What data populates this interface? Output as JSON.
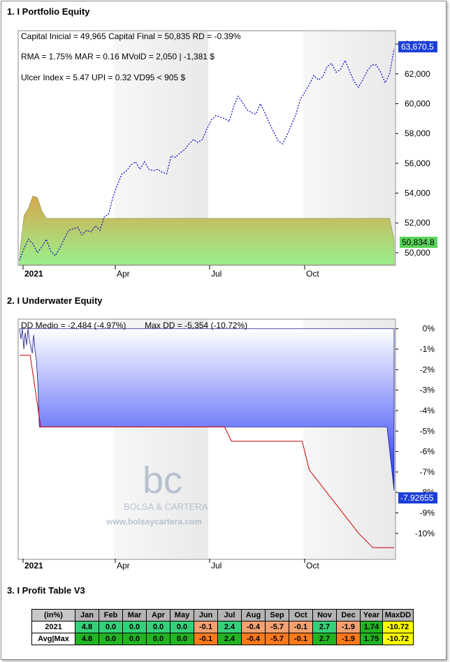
{
  "sections": {
    "equity_title": "1. I Portfolio Equity",
    "underwater_title": "2. I Underwater Equity",
    "table_title": "3. I Profit Table V3"
  },
  "colors": {
    "equity_dotted": "#0000cc",
    "area_top": "#d7a84d",
    "area_bottom": "#9af08c",
    "underwater_top": "#ffffff",
    "underwater_bottom": "#1a2ef5",
    "maxdd_line": "#cc0000",
    "badge_blue": "#1c3fd8",
    "badge_green": "#5ad45a",
    "cell_green": "#36d07a",
    "cell_orange": "#f4a070",
    "cell_dark_green": "#22b422",
    "cell_dark_orange": "#ff7a1a",
    "cell_yellow": "#ffff00",
    "header_gray": "#b4b4b4"
  },
  "chart_data": [
    {
      "type": "line",
      "title": "Portfolio Equity",
      "stats": [
        "Capital Inicial = 49,965   Capital Final = 50,835   RD = -0.39%",
        "RMA = 1.75%   MAR = 0.16   MVolD = 2,050 | -1,381 $",
        "Ulcer Index = 5.47   UPI = 0.32   VD95 < 905 $"
      ],
      "x_tick_labels": [
        "2021",
        "Apr",
        "Jul",
        "Oct"
      ],
      "y_ticks": [
        50000,
        52000,
        54000,
        56000,
        58000,
        60000,
        62000,
        64000
      ],
      "y_tick_labels": [
        "50,000",
        "52,000",
        "54,000",
        "56,000",
        "58,000",
        "60,000",
        "62,000",
        "64,000"
      ],
      "ylim": [
        49200,
        64800
      ],
      "last_value_dotted_label": "63,670.5",
      "last_value_area_label": "50,834.8",
      "series": [
        {
          "style": "dotted",
          "x": [
            0,
            3,
            6,
            9,
            12,
            15,
            18,
            21,
            24,
            27,
            30,
            33,
            36,
            39,
            42,
            45,
            48,
            51,
            54,
            57,
            60,
            63,
            66,
            69,
            72,
            75,
            78,
            81,
            84,
            87,
            90,
            93,
            96,
            99,
            102,
            105,
            108,
            111,
            114,
            117,
            120,
            123,
            126,
            129,
            132,
            135,
            138,
            141,
            144,
            147,
            150,
            153,
            156,
            159,
            162,
            165,
            168,
            171,
            174,
            177,
            180,
            183,
            186,
            189,
            192,
            195,
            198,
            201,
            204,
            207,
            210,
            213,
            216,
            219,
            222,
            225,
            228,
            231,
            234,
            237,
            240,
            243,
            246,
            249,
            252
          ],
          "values": [
            49500,
            50300,
            50900,
            50600,
            50000,
            50400,
            50900,
            50100,
            49800,
            50300,
            50900,
            51500,
            51600,
            51700,
            51200,
            51500,
            51400,
            51800,
            51500,
            52400,
            52600,
            53800,
            54600,
            55300,
            55500,
            55900,
            56100,
            55600,
            56100,
            55600,
            55500,
            55600,
            55400,
            55300,
            56500,
            56400,
            56700,
            56900,
            57300,
            57600,
            57400,
            57600,
            58300,
            58900,
            59200,
            59100,
            59000,
            58800,
            59800,
            60500,
            60100,
            59600,
            59400,
            59300,
            60000,
            59400,
            58700,
            58100,
            57500,
            57300,
            57900,
            58600,
            59300,
            60300,
            60800,
            61300,
            61900,
            61600,
            61800,
            62500,
            62700,
            62100,
            62300,
            62900,
            62200,
            61500,
            61100,
            61600,
            62200,
            62600,
            62600,
            62100,
            61400,
            62000,
            63670
          ]
        },
        {
          "style": "area",
          "x": [
            0,
            3,
            6,
            9,
            12,
            15,
            18,
            21,
            24,
            27,
            30,
            33,
            36,
            39,
            42,
            45,
            48,
            51,
            54,
            57,
            60,
            63,
            66,
            69,
            72,
            75,
            78,
            81,
            84,
            87,
            90,
            93,
            96,
            99,
            102,
            105,
            108,
            111,
            114,
            117,
            120,
            123,
            126,
            129,
            132,
            135,
            138,
            141,
            144,
            147,
            150,
            153,
            156,
            159,
            162,
            165,
            168,
            171,
            174,
            177,
            180,
            183,
            186,
            189,
            192,
            195,
            198,
            201,
            204,
            207,
            210,
            213,
            216,
            219,
            222,
            225,
            228,
            231,
            234,
            237,
            240,
            243,
            246,
            249,
            252
          ],
          "values": [
            49800,
            52500,
            53000,
            53800,
            53700,
            52800,
            52300,
            52300,
            52300,
            52300,
            52300,
            52300,
            52300,
            52300,
            52300,
            52300,
            52300,
            52300,
            52300,
            52300,
            52300,
            52300,
            52300,
            52300,
            52300,
            52300,
            52300,
            52300,
            52300,
            52300,
            52300,
            52300,
            52300,
            52300,
            52300,
            52300,
            52300,
            52300,
            52300,
            52300,
            52300,
            52300,
            52300,
            52300,
            52300,
            52300,
            52300,
            52300,
            52300,
            52300,
            52300,
            52300,
            52300,
            52300,
            52300,
            52300,
            52300,
            52300,
            52300,
            52300,
            52300,
            52300,
            52300,
            52300,
            52300,
            52300,
            52300,
            52300,
            52300,
            52300,
            52300,
            52300,
            52300,
            52300,
            52300,
            52300,
            52300,
            52300,
            52300,
            52300,
            52300,
            52300,
            52300,
            52300,
            50835
          ]
        }
      ]
    },
    {
      "type": "area",
      "title": "Underwater Equity",
      "stats": "DD Medio = -2,484 (-4.97%)        Max DD = -5,354 (-10.72%)",
      "x_tick_labels": [
        "2021",
        "Apr",
        "Jul",
        "Oct"
      ],
      "y_ticks": [
        0,
        -1,
        -2,
        -3,
        -4,
        -5,
        -6,
        -7,
        -8,
        -9,
        -10
      ],
      "y_tick_labels": [
        "0%",
        "-1%",
        "-2%",
        "-3%",
        "-4%",
        "-5%",
        "-6%",
        "-7%",
        "-8%",
        "-9%",
        "-10%"
      ],
      "ylim": [
        -11.2,
        0.4
      ],
      "last_value_label": "-7.92655",
      "series": [
        {
          "name": "drawdown",
          "x": [
            0,
            2,
            4,
            6,
            8,
            10,
            12,
            14,
            16,
            18,
            20,
            22,
            24,
            26,
            28,
            30,
            35,
            40,
            50,
            60,
            70,
            80,
            90,
            100,
            110,
            120,
            130,
            140,
            150,
            160,
            170,
            180,
            190,
            200,
            210,
            220,
            230,
            240,
            250,
            260,
            270,
            280,
            290,
            300,
            310,
            320,
            330,
            340,
            350,
            360,
            370,
            380,
            390,
            400,
            410,
            420,
            430,
            440,
            450,
            460,
            470,
            480,
            490,
            500,
            510,
            520,
            530
          ],
          "values": [
            0,
            -0.5,
            0,
            -1.0,
            -0.2,
            -0.8,
            0,
            -0.6,
            -0.9,
            -1.2,
            -0.3,
            -1.1,
            -1.6,
            -2.8,
            -4.8,
            -4.8,
            -4.8,
            -4.8,
            -4.8,
            -4.8,
            -4.8,
            -4.8,
            -4.8,
            -4.8,
            -4.8,
            -4.8,
            -4.8,
            -4.8,
            -4.8,
            -4.8,
            -4.8,
            -4.8,
            -4.8,
            -4.8,
            -4.8,
            -4.8,
            -4.8,
            -4.8,
            -4.8,
            -4.8,
            -4.8,
            -4.8,
            -4.8,
            -4.8,
            -4.8,
            -4.8,
            -4.8,
            -4.8,
            -4.8,
            -4.8,
            -4.8,
            -4.8,
            -4.8,
            -4.8,
            -4.8,
            -4.8,
            -4.8,
            -4.8,
            -4.8,
            -4.8,
            -4.8,
            -4.8,
            -4.8,
            -4.8,
            -4.8,
            -4.8,
            -7.9
          ]
        },
        {
          "name": "max-drawdown",
          "x": [
            0,
            15,
            30,
            290,
            300,
            400,
            410,
            480,
            500,
            530
          ],
          "values": [
            -1.3,
            -1.3,
            -4.8,
            -4.8,
            -5.5,
            -5.5,
            -6.9,
            -10.0,
            -10.7,
            -10.7
          ]
        }
      ]
    }
  ],
  "watermark": {
    "logo": "bc",
    "name": "BOLSA & CARTERA",
    "url": "www.bolsaycartera.com"
  },
  "profit_table": {
    "headers": [
      "(in%)",
      "Jan",
      "Feb",
      "Mar",
      "Apr",
      "May",
      "Jun",
      "Jul",
      "Aug",
      "Sep",
      "Oct",
      "Nov",
      "Dec",
      "Year",
      "MaxDD"
    ],
    "rows": [
      {
        "label": "2021",
        "cells": [
          "4.8",
          "0.0",
          "0.0",
          "0.0",
          "0.0",
          "-0.1",
          "2.4",
          "-0.4",
          "-5.7",
          "-0.1",
          "2.7",
          "-1.9",
          "1.74",
          "-10.72"
        ]
      },
      {
        "label": "Avg|Max",
        "cells": [
          "4.8",
          "0.0",
          "0.0",
          "0.0",
          "0.0",
          "-0.1",
          "2.4",
          "-0.4",
          "-5.7",
          "-0.1",
          "2.7",
          "-1.9",
          "1.75",
          "-10.72"
        ]
      }
    ]
  }
}
